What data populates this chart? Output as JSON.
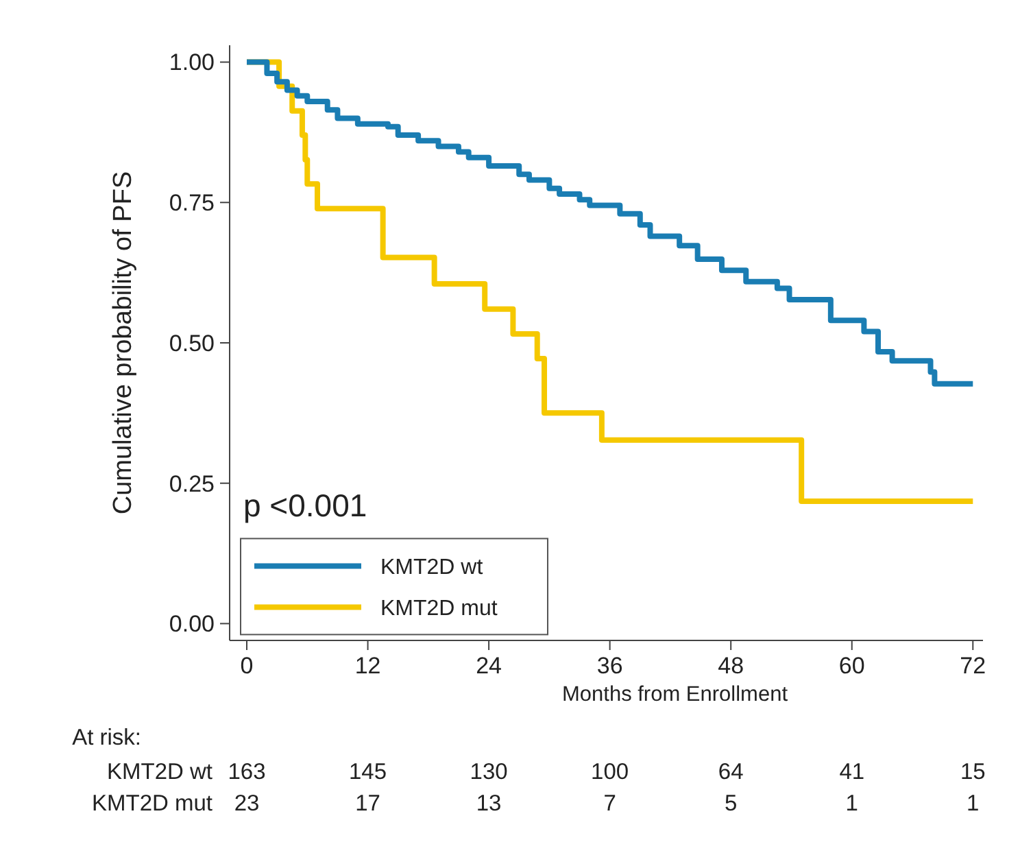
{
  "chart_data": {
    "type": "step",
    "xlabel": "Months from Enrollment",
    "ylabel": "Cumulative probability of PFS",
    "xlim": [
      -1.7,
      73
    ],
    "ylim": [
      -0.03,
      1.03
    ],
    "xticks": [
      0,
      12,
      24,
      36,
      48,
      60,
      72
    ],
    "yticks": [
      {
        "value": 0,
        "label": "0.00"
      },
      {
        "value": 0.25,
        "label": "0.25"
      },
      {
        "value": 0.5,
        "label": "0.50"
      },
      {
        "value": 0.75,
        "label": "0.75"
      },
      {
        "value": 1,
        "label": "1.00"
      }
    ],
    "grid": false,
    "legend": "bottom left",
    "line_style": "solid",
    "marker": "none",
    "series": [
      {
        "name": "KMT2D wt",
        "color": "#1a7db3",
        "x": [
          0,
          2,
          3,
          4,
          5,
          6,
          8,
          9,
          11,
          14,
          15,
          17,
          19,
          21,
          22,
          24,
          27,
          28,
          30,
          31,
          33,
          34,
          37,
          39,
          40,
          42.9,
          44.7,
          47.1,
          49.5,
          52.6,
          53.8,
          57.9,
          61.2,
          62.6,
          64,
          67.8,
          68.2,
          72
        ],
        "values": [
          1,
          0.98,
          0.965,
          0.95,
          0.94,
          0.93,
          0.915,
          0.9,
          0.89,
          0.885,
          0.87,
          0.86,
          0.85,
          0.84,
          0.83,
          0.815,
          0.8,
          0.79,
          0.775,
          0.765,
          0.755,
          0.745,
          0.73,
          0.71,
          0.69,
          0.673,
          0.649,
          0.629,
          0.609,
          0.597,
          0.577,
          0.54,
          0.52,
          0.484,
          0.468,
          0.448,
          0.427,
          0.427
        ]
      },
      {
        "name": "KMT2D mut",
        "color": "#f5c800",
        "x": [
          0,
          3.2,
          4.5,
          5.5,
          5.8,
          6,
          7,
          13.5,
          18.6,
          23.6,
          26.4,
          28.8,
          29.5,
          35.2,
          55,
          72
        ],
        "values": [
          1,
          0.957,
          0.913,
          0.87,
          0.826,
          0.783,
          0.739,
          0.652,
          0.605,
          0.56,
          0.516,
          0.472,
          0.375,
          0.327,
          0.218,
          0.218
        ]
      }
    ],
    "annotations": [
      "p <0.001",
      "At risk:",
      "KMT2D wt",
      "163",
      "145",
      "130",
      "100",
      "64",
      "41",
      "15",
      "KMT2D mut",
      "23",
      "17",
      "13",
      "7",
      "5",
      "1",
      "1"
    ]
  }
}
